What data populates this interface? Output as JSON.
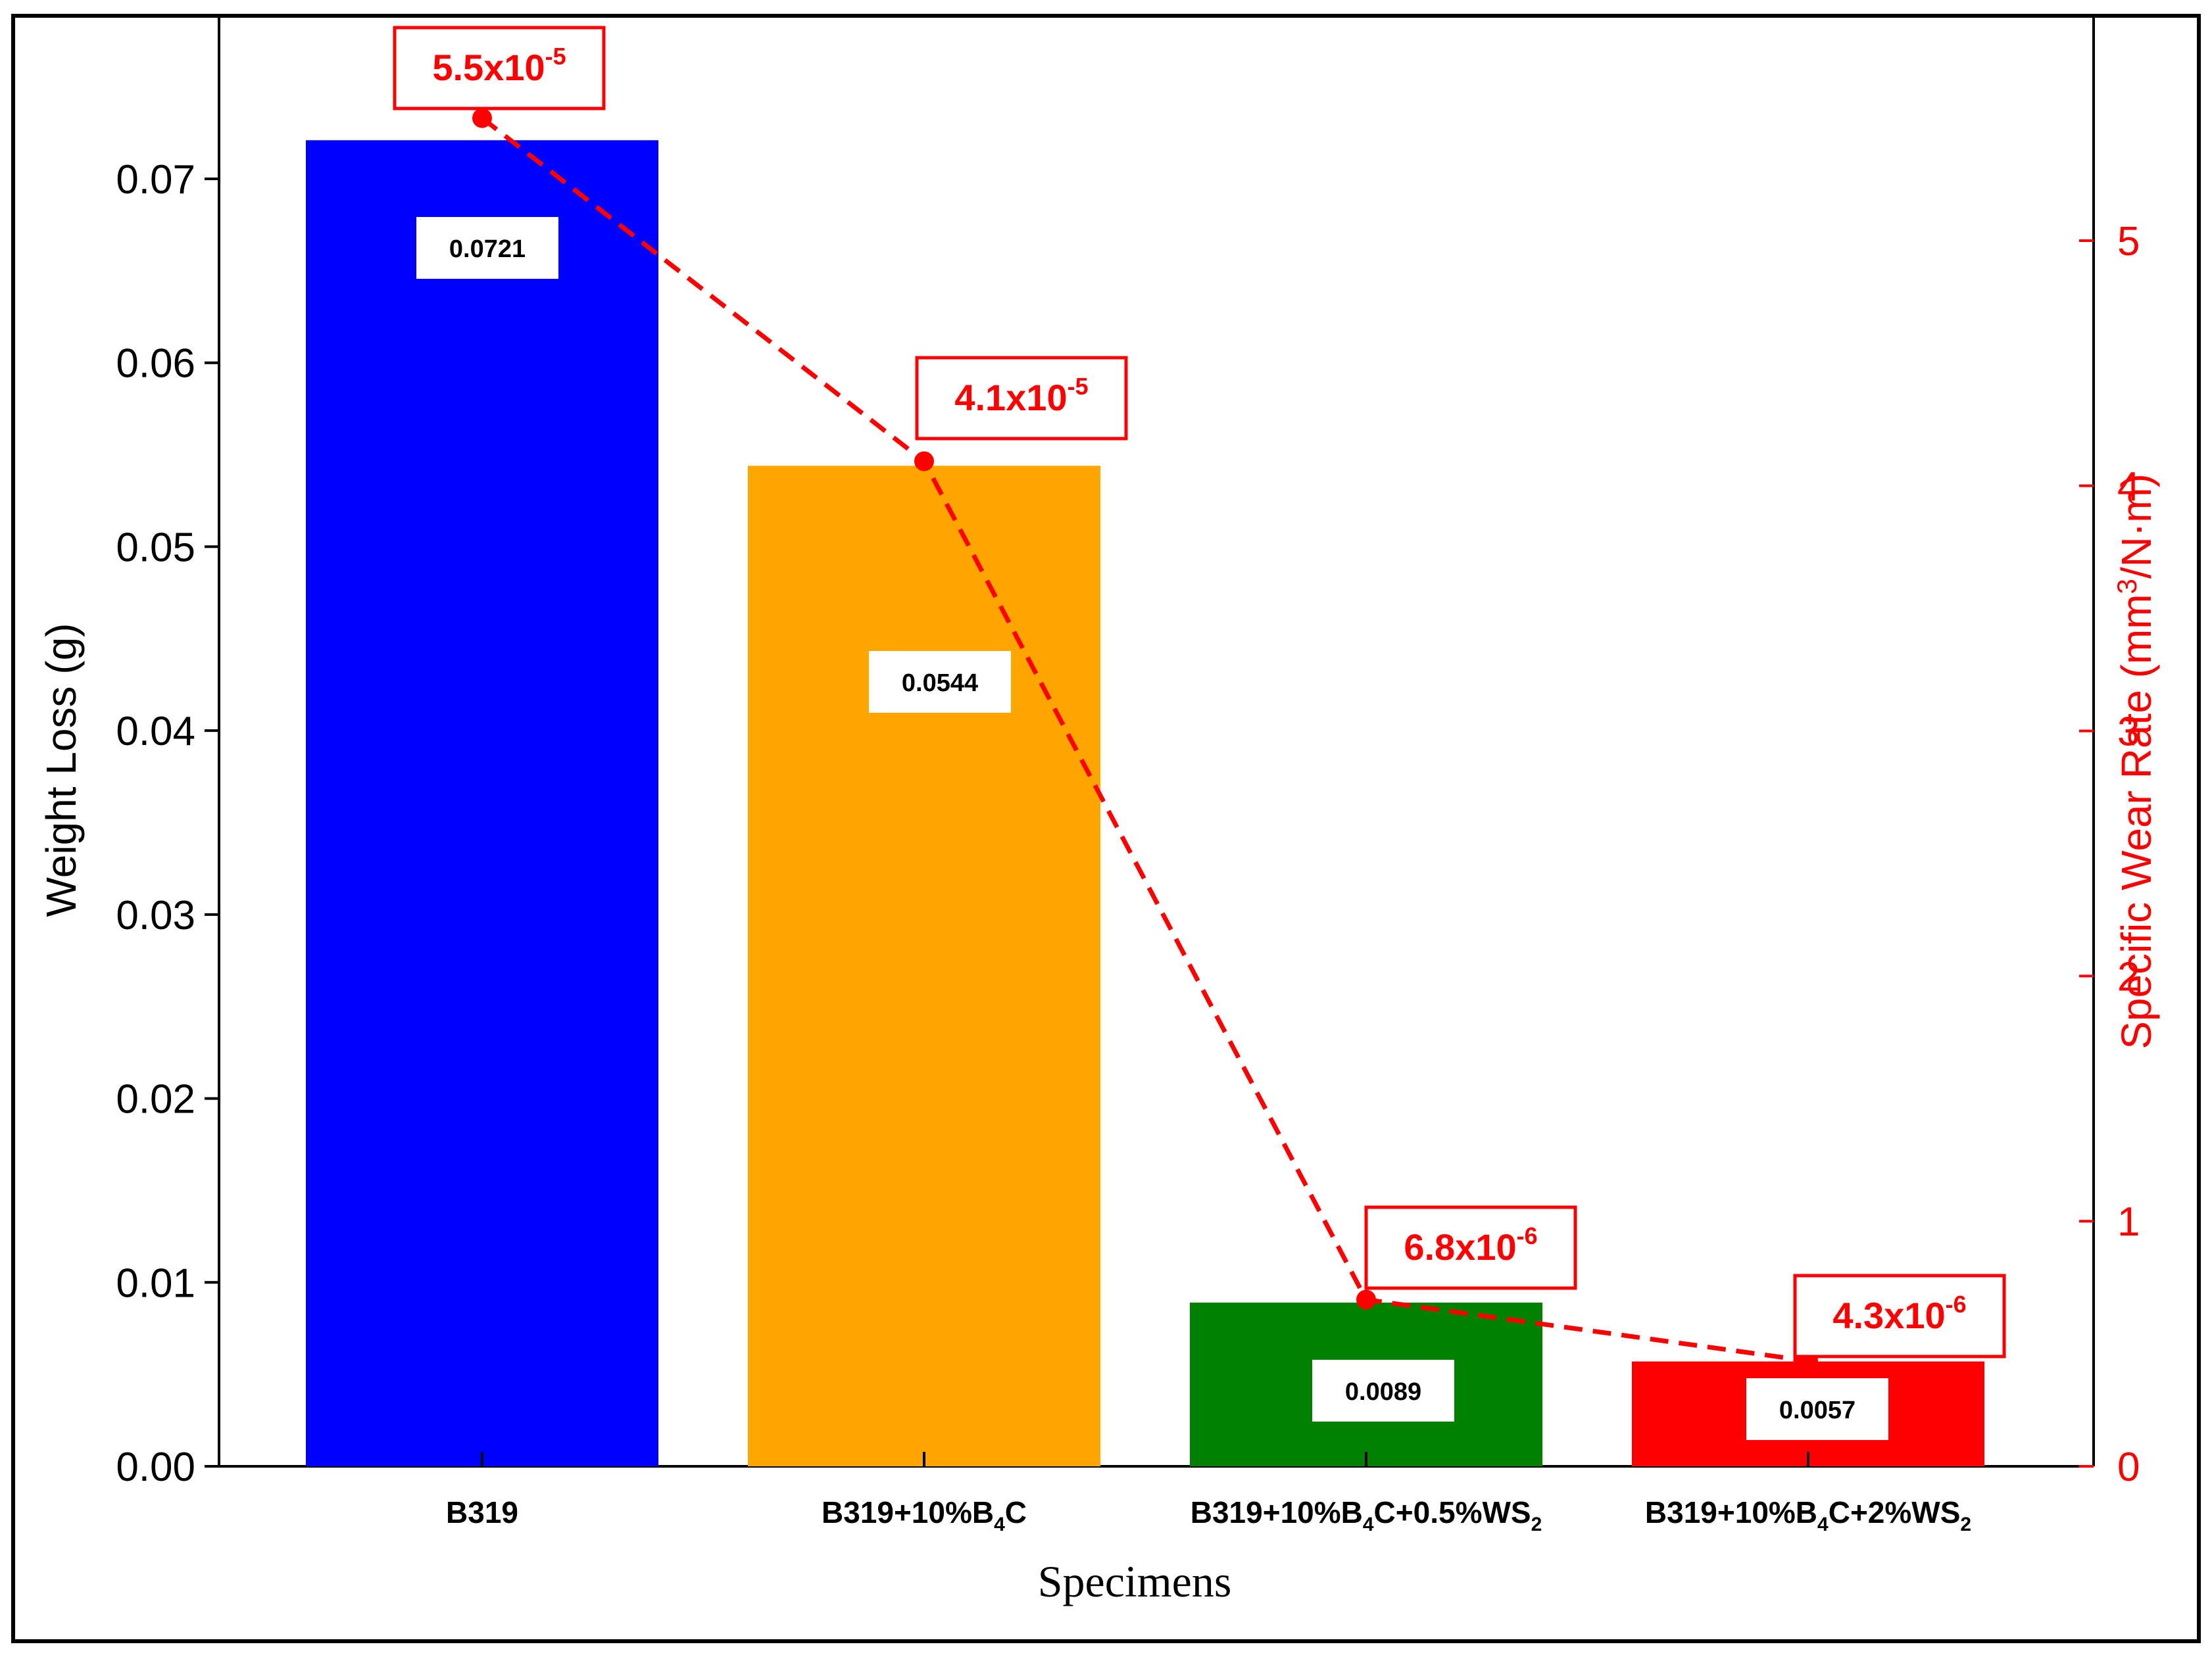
{
  "chart_data": {
    "type": "bar",
    "categories": [
      {
        "base": "B319",
        "parts": [
          {
            "t": "B319",
            "sub": false
          }
        ]
      },
      {
        "base": "B319+10%B4C",
        "parts": [
          {
            "t": "B319+10%B",
            "sub": false
          },
          {
            "t": "4",
            "sub": true
          },
          {
            "t": "C",
            "sub": false
          }
        ]
      },
      {
        "base": "B319+10%B4C+0.5%WS2",
        "parts": [
          {
            "t": "B319+10%B",
            "sub": false
          },
          {
            "t": "4",
            "sub": true
          },
          {
            "t": "C+0.5%WS",
            "sub": false
          },
          {
            "t": "2",
            "sub": true
          }
        ]
      },
      {
        "base": "B319+10%B4C+2%WS2",
        "parts": [
          {
            "t": "B319+10%B",
            "sub": false
          },
          {
            "t": "4",
            "sub": true
          },
          {
            "t": "C+2%WS",
            "sub": false
          },
          {
            "t": "2",
            "sub": true
          }
        ]
      }
    ],
    "values": [
      0.0721,
      0.0544,
      0.0089,
      0.0057
    ],
    "value_labels": [
      "0.0721",
      "0.0544",
      "0.0089",
      "0.0057"
    ],
    "bar_colors": [
      "#0000ff",
      "#ffa500",
      "#008000",
      "#ff0000"
    ],
    "xlabel": "Specimens",
    "ylabel": "Weight Loss (g)",
    "ylim": [
      0,
      0.077
    ],
    "yticks": [
      0.0,
      0.01,
      0.02,
      0.03,
      0.04,
      0.05,
      0.06,
      0.07
    ],
    "ytick_labels": [
      "0.00",
      "0.01",
      "0.02",
      "0.03",
      "0.04",
      "0.05",
      "0.06",
      "0.07"
    ],
    "y2label": {
      "pre": "Specific Wear Rate (mm",
      "sup": "3",
      "post": "/N·m)"
    },
    "y2lim": [
      0,
      5.5
    ],
    "y2ticks": [
      0,
      1,
      2,
      3,
      4,
      5
    ],
    "y2tick_labels": [
      "0",
      "1",
      "2",
      "3",
      "4",
      "5"
    ],
    "line_series": {
      "values": [
        5.5,
        4.1,
        0.68,
        0.43
      ],
      "labels": [
        {
          "mantissa": "5.5x10",
          "exp": "-5"
        },
        {
          "mantissa": "4.1x10",
          "exp": "-5"
        },
        {
          "mantissa": "6.8x10",
          "exp": "-6"
        },
        {
          "mantissa": "4.3x10",
          "exp": "-6"
        }
      ],
      "color": "#ff0000",
      "style": "dashed"
    },
    "grid": false
  }
}
